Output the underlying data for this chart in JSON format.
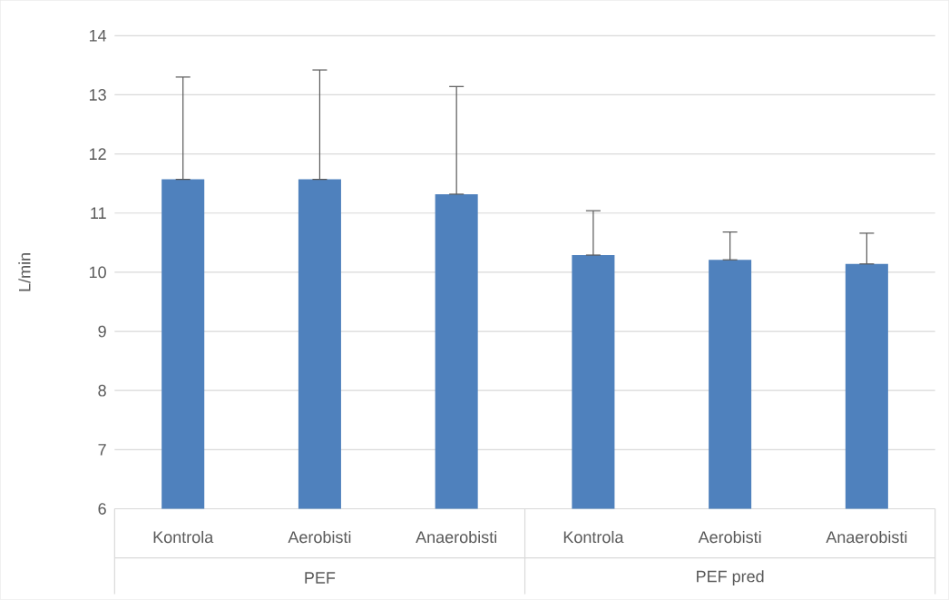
{
  "chart_data": {
    "type": "bar",
    "ylabel": "L/min",
    "categories": [
      "Kontrola",
      "Aerobisti",
      "Anaerobisti",
      "Kontrola",
      "Aerobisti",
      "Anaerobisti"
    ],
    "values": [
      11.57,
      11.57,
      11.32,
      10.29,
      10.21,
      10.14
    ],
    "errors": [
      [
        11.57,
        13.3
      ],
      [
        11.57,
        13.42
      ],
      [
        11.32,
        13.14
      ],
      [
        10.29,
        11.04
      ],
      [
        10.21,
        10.68
      ],
      [
        10.14,
        10.66
      ]
    ],
    "color": "#4f81bd",
    "ylim": [
      6,
      14
    ],
    "yticks": [
      6,
      7,
      8,
      9,
      10,
      11,
      12,
      13,
      14
    ],
    "grid": "y",
    "annotations": [
      "PEF",
      "PEF pred"
    ]
  }
}
